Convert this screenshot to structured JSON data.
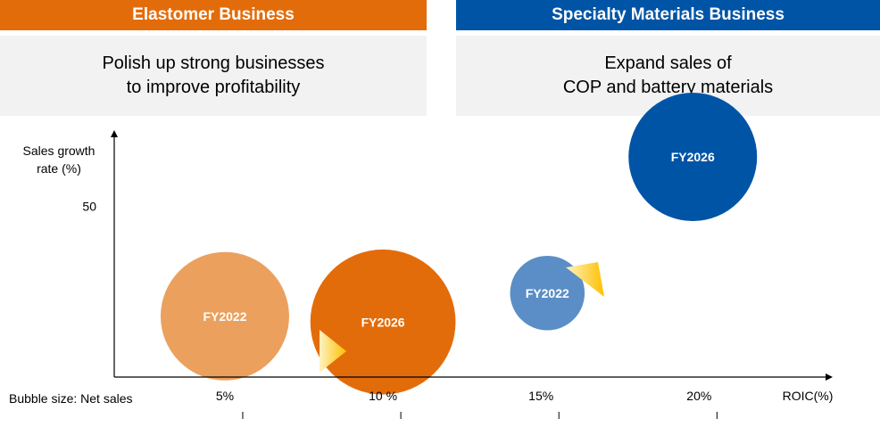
{
  "colors": {
    "elastomer": "#e36c0a",
    "elastomer_light": "#eba05e",
    "specialty": "#0054a6",
    "specialty_light": "#5b8ec6",
    "panel_bg": "#f2f2f2",
    "arrow": "#ffc000"
  },
  "left": {
    "header": "Elastomer Business",
    "line1": "Polish up strong businesses",
    "line2": "to improve profitability"
  },
  "right": {
    "header": "Specialty Materials Business",
    "line1": "Expand sales of",
    "line2": "COP and battery materials"
  },
  "chart_data": {
    "type": "bubble",
    "ylabel_lines": [
      "Sales growth",
      "rate (%)"
    ],
    "xlabel": "ROIC(%)",
    "size_note": "Bubble size: Net sales",
    "xlim": [
      1.5,
      24
    ],
    "ylim": [
      -9,
      75
    ],
    "x_ticks": [
      {
        "value": 5,
        "label": "5%"
      },
      {
        "value": 10,
        "label": "10 %"
      },
      {
        "value": 15,
        "label": "15%"
      },
      {
        "value": 20,
        "label": "20%"
      }
    ],
    "y_ticks": [
      {
        "value": 50,
        "label": "50"
      }
    ],
    "series": [
      {
        "business": "elastomer",
        "points": [
          {
            "label": "FY2022",
            "x": 5,
            "y": 12,
            "size": 1.0,
            "shade": "light"
          },
          {
            "label": "FY2026",
            "x": 10,
            "y": 10,
            "size": 1.13,
            "shade": "dark"
          }
        ]
      },
      {
        "business": "specialty",
        "points": [
          {
            "label": "FY2022",
            "x": 15.2,
            "y": 20,
            "size": 0.58,
            "shade": "light"
          },
          {
            "label": "FY2026",
            "x": 19.8,
            "y": 67,
            "size": 1.0,
            "shade": "dark"
          }
        ]
      }
    ]
  }
}
